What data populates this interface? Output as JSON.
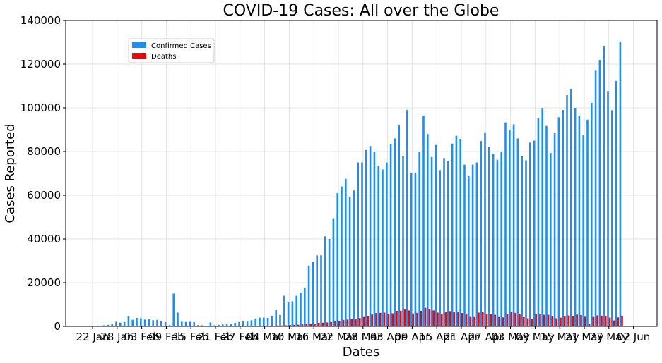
{
  "chart_data": {
    "type": "bar",
    "title": "COVID-19 Cases: All over the Globe",
    "xlabel": "Dates",
    "ylabel": "Cases Reported",
    "ylim": [
      0,
      140000
    ],
    "yticks": [
      "0",
      "20000",
      "40000",
      "60000",
      "80000",
      "100000",
      "120000",
      "140000"
    ],
    "xtick_labels": [
      "22 Jan",
      "28 Jan",
      "03 Feb",
      "09 Feb",
      "15 Feb",
      "21 Feb",
      "27 Feb",
      "04 Mar",
      "10 Mar",
      "16 Mar",
      "22 Mar",
      "28 Mar",
      "03 Apr",
      "09 Apr",
      "15 Apr",
      "21 Apr",
      "27 Apr",
      "03 May",
      "09 May",
      "15 May",
      "21 May",
      "27 May",
      "02 Jun"
    ],
    "grid": true,
    "legend_position": "upper-left",
    "series": [
      {
        "name": "Confirmed Cases",
        "color": "#1f8ef1",
        "values": [
          0,
          100,
          300,
          500,
          700,
          1200,
          2100,
          1700,
          2000,
          4700,
          3000,
          3900,
          3700,
          3100,
          3200,
          2800,
          3000,
          2500,
          2000,
          500,
          15000,
          6300,
          2100,
          2000,
          2100,
          1900,
          600,
          500,
          300,
          1800,
          500,
          700,
          900,
          1100,
          1200,
          1600,
          2000,
          2400,
          2200,
          2800,
          3600,
          4000,
          4000,
          3900,
          4900,
          7400,
          5200,
          14000,
          11000,
          11500,
          14000,
          15500,
          17800,
          27800,
          29500,
          32500,
          32500,
          41200,
          40000,
          49500,
          61000,
          64000,
          67500,
          59300,
          62200,
          75000,
          75000,
          80700,
          82500,
          80000,
          73300,
          71800,
          75000,
          83500,
          86000,
          92000,
          78000,
          99000,
          70000,
          70400,
          80000,
          96500,
          88000,
          77500,
          83000,
          71500,
          77000,
          75500,
          83600,
          87200,
          85800,
          74000,
          68700,
          74000,
          75000,
          84800,
          88800,
          82000,
          79000,
          76200,
          80000,
          93300,
          89800,
          92400,
          86000,
          78000,
          76000,
          84100,
          85000,
          95300,
          100000,
          91700,
          79400,
          88400,
          95700,
          99000,
          105800,
          108700,
          100000,
          96500,
          87400,
          94600,
          102300,
          117000,
          121900,
          128400,
          107700,
          98900,
          112300,
          130400
        ]
      },
      {
        "name": "Deaths",
        "color": "#e8090b",
        "values": [
          0,
          0,
          0,
          10,
          20,
          40,
          60,
          60,
          70,
          80,
          90,
          100,
          100,
          100,
          110,
          100,
          120,
          130,
          140,
          140,
          250,
          140,
          120,
          100,
          140,
          120,
          110,
          100,
          50,
          90,
          50,
          60,
          70,
          80,
          60,
          90,
          100,
          110,
          90,
          120,
          120,
          200,
          300,
          300,
          250,
          400,
          400,
          500,
          600,
          700,
          750,
          900,
          1100,
          1100,
          1300,
          1600,
          1700,
          1800,
          2000,
          2300,
          2600,
          3000,
          3100,
          3400,
          3500,
          3800,
          4300,
          4700,
          5400,
          6100,
          6200,
          6300,
          5600,
          6000,
          7100,
          7200,
          7700,
          7300,
          5900,
          6200,
          7100,
          8500,
          8000,
          7300,
          6300,
          5800,
          6600,
          7000,
          6700,
          6600,
          6100,
          5900,
          4300,
          4300,
          6300,
          6700,
          5700,
          5700,
          5300,
          4300,
          4100,
          5800,
          6500,
          6200,
          5500,
          4200,
          3700,
          3400,
          5600,
          5500,
          5300,
          5300,
          4500,
          3700,
          4000,
          4700,
          5000,
          4700,
          5400,
          5200,
          4400,
          1100,
          4300,
          5000,
          4900,
          4800,
          4000,
          2700,
          4100,
          4900,
          5700
        ]
      }
    ]
  }
}
